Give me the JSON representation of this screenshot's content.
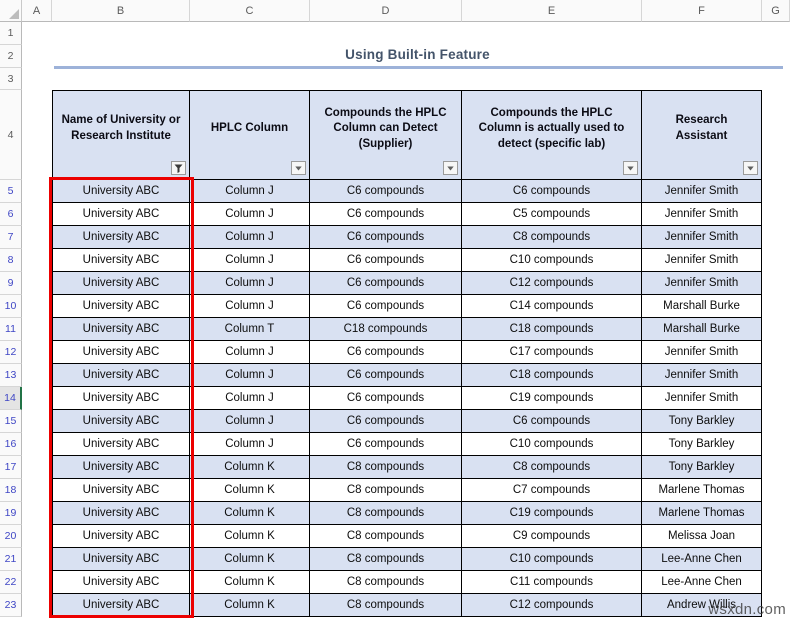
{
  "sheet": {
    "column_letters": [
      "A",
      "B",
      "C",
      "D",
      "E",
      "F",
      "G"
    ],
    "row_numbers": [
      1,
      2,
      3,
      4,
      5,
      6,
      7,
      8,
      9,
      10,
      11,
      12,
      13,
      14,
      15,
      16,
      17,
      18,
      19,
      20,
      21,
      22,
      23
    ],
    "first_filtered_row": 5,
    "active_row": 14
  },
  "title": {
    "text": "Using Built-in Feature"
  },
  "table": {
    "columns": [
      {
        "label": "Name of University or Research Institute",
        "filter_icon": "funnel"
      },
      {
        "label": "HPLC Column",
        "filter_icon": "arrow"
      },
      {
        "label": "Compounds the HPLC Column can Detect (Supplier)",
        "filter_icon": "arrow"
      },
      {
        "label": "Compounds the HPLC Column is actually used to detect (specific lab)",
        "filter_icon": "arrow"
      },
      {
        "label": "Research Assistant",
        "filter_icon": "arrow"
      }
    ],
    "rows": [
      {
        "row": 5,
        "cells": [
          "University ABC",
          "Column J",
          "C6 compounds",
          "C6 compounds",
          "Jennifer Smith"
        ]
      },
      {
        "row": 6,
        "cells": [
          "University ABC",
          "Column J",
          "C6 compounds",
          "C5 compounds",
          "Jennifer Smith"
        ]
      },
      {
        "row": 7,
        "cells": [
          "University ABC",
          "Column J",
          "C6 compounds",
          "C8 compounds",
          "Jennifer Smith"
        ]
      },
      {
        "row": 8,
        "cells": [
          "University ABC",
          "Column J",
          "C6 compounds",
          "C10 compounds",
          "Jennifer Smith"
        ]
      },
      {
        "row": 9,
        "cells": [
          "University ABC",
          "Column J",
          "C6 compounds",
          "C12 compounds",
          "Jennifer Smith"
        ]
      },
      {
        "row": 10,
        "cells": [
          "University ABC",
          "Column J",
          "C6 compounds",
          "C14 compounds",
          "Marshall Burke"
        ]
      },
      {
        "row": 11,
        "cells": [
          "University ABC",
          "Column T",
          "C18 compounds",
          "C18 compounds",
          "Marshall Burke"
        ]
      },
      {
        "row": 12,
        "cells": [
          "University ABC",
          "Column J",
          "C6 compounds",
          "C17 compounds",
          "Jennifer Smith"
        ]
      },
      {
        "row": 13,
        "cells": [
          "University ABC",
          "Column J",
          "C6 compounds",
          "C18 compounds",
          "Jennifer Smith"
        ]
      },
      {
        "row": 14,
        "cells": [
          "University ABC",
          "Column J",
          "C6 compounds",
          "C19 compounds",
          "Jennifer Smith"
        ]
      },
      {
        "row": 15,
        "cells": [
          "University ABC",
          "Column J",
          "C6 compounds",
          "C6 compounds",
          "Tony Barkley"
        ]
      },
      {
        "row": 16,
        "cells": [
          "University ABC",
          "Column J",
          "C6 compounds",
          "C10 compounds",
          "Tony Barkley"
        ]
      },
      {
        "row": 17,
        "cells": [
          "University ABC",
          "Column K",
          "C8 compounds",
          "C8 compounds",
          "Tony Barkley"
        ]
      },
      {
        "row": 18,
        "cells": [
          "University ABC",
          "Column K",
          "C8 compounds",
          "C7 compounds",
          "Marlene Thomas"
        ]
      },
      {
        "row": 19,
        "cells": [
          "University ABC",
          "Column K",
          "C8 compounds",
          "C19 compounds",
          "Marlene Thomas"
        ]
      },
      {
        "row": 20,
        "cells": [
          "University ABC",
          "Column K",
          "C8 compounds",
          "C9 compounds",
          "Melissa Joan"
        ]
      },
      {
        "row": 21,
        "cells": [
          "University ABC",
          "Column K",
          "C8 compounds",
          "C10 compounds",
          "Lee-Anne Chen"
        ]
      },
      {
        "row": 22,
        "cells": [
          "University ABC",
          "Column K",
          "C8 compounds",
          "C11 compounds",
          "Lee-Anne Chen"
        ]
      },
      {
        "row": 23,
        "cells": [
          "University ABC",
          "Column K",
          "C8 compounds",
          "C12 compounds",
          "Andrew Willis"
        ]
      }
    ]
  },
  "watermark": {
    "text": "wsxdn.com"
  },
  "colors": {
    "band_fill": "#D9E1F2",
    "header_fill": "#D9E1F2",
    "title_color": "#44546A",
    "rule_color": "#9DB2D9",
    "red_border": "#EC0000",
    "filtered_row_number": "#3F46C5",
    "active_green": "#217346",
    "grid_header_text": "#5B5B5B"
  }
}
